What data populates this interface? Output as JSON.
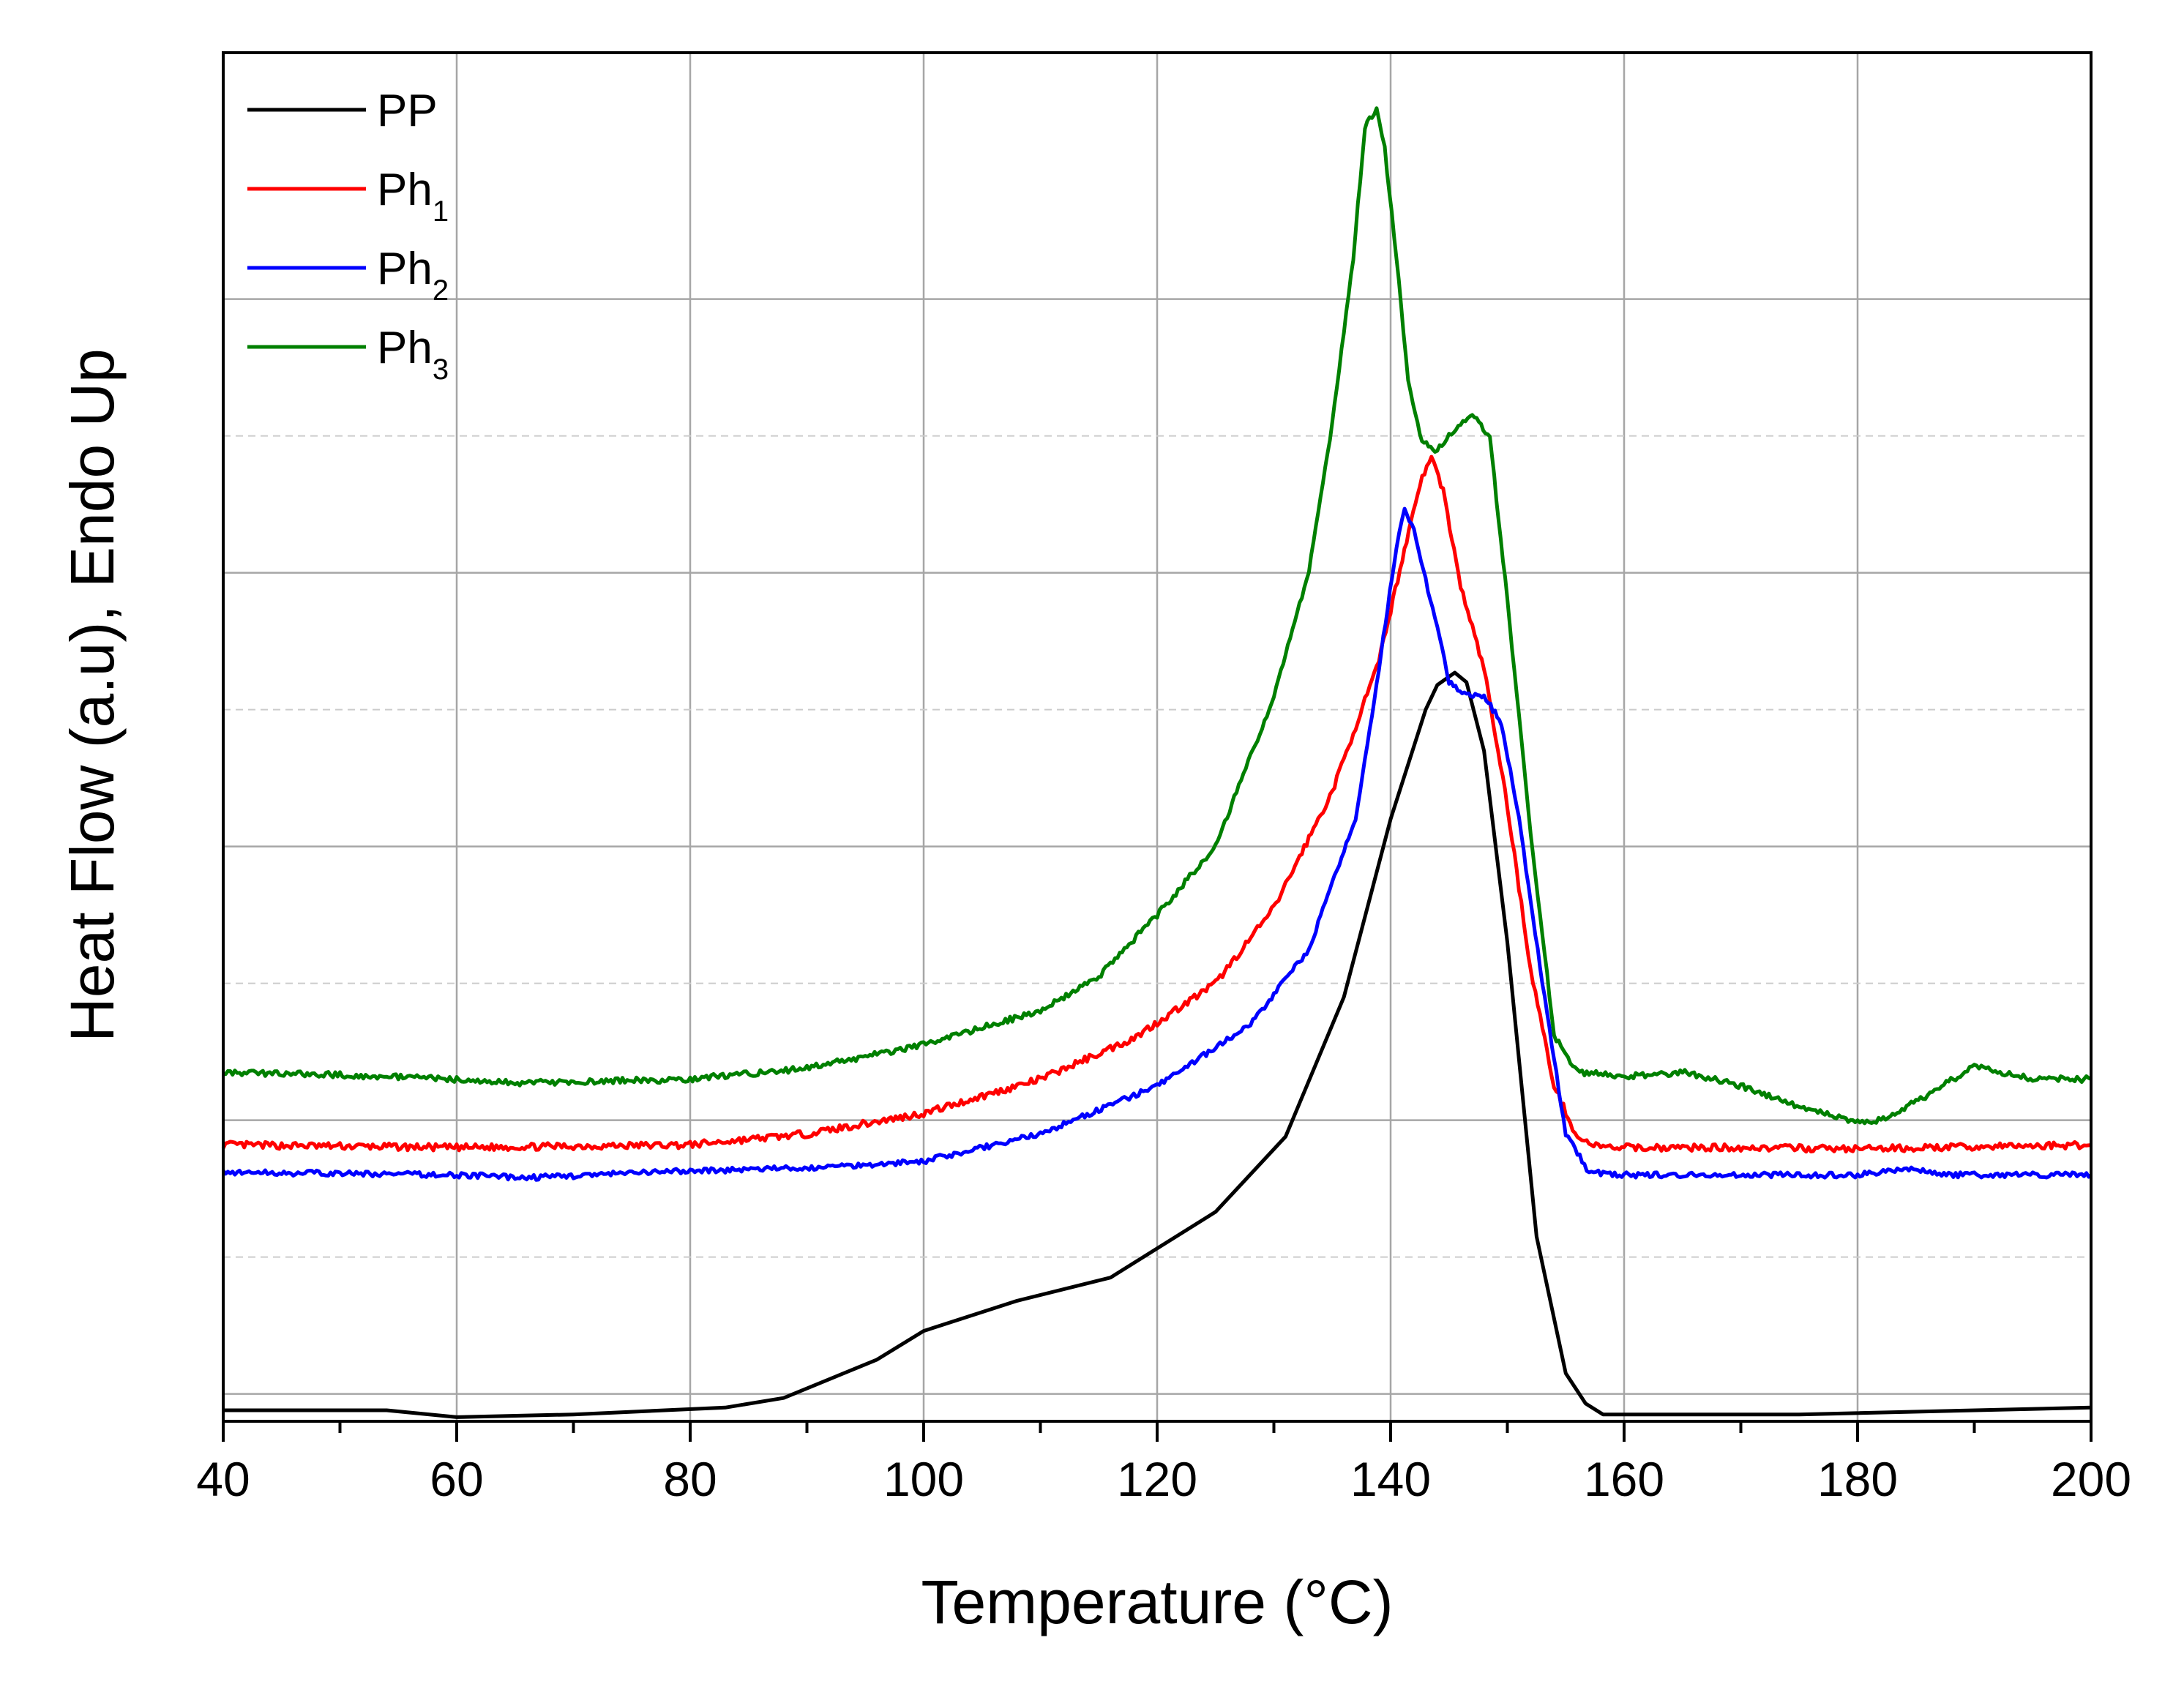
{
  "chart_data": {
    "type": "line",
    "title": "",
    "xlabel": "Temperature (°C)",
    "ylabel": "Heat Flow (a.u), Endo Up",
    "xlim": [
      40,
      200
    ],
    "ylim": [
      0,
      10
    ],
    "x_ticks": [
      40,
      60,
      80,
      100,
      120,
      140,
      160,
      180,
      200
    ],
    "x_tick_labels": [
      "40",
      "60",
      "80",
      "100",
      "120",
      "140",
      "160",
      "180",
      "200"
    ],
    "y_tick_labels_shown": false,
    "y_gridlines": [
      0.2,
      2.2,
      4.2,
      6.2,
      8.2
    ],
    "y_minor_gridlines": [
      1.2,
      3.2,
      5.2,
      7.2
    ],
    "grid": true,
    "legend_position": "top-left",
    "series": [
      {
        "name": "PP",
        "name_base": "PP",
        "name_sub": "",
        "color": "#000000",
        "noise": 0,
        "x": [
          40,
          54,
          60,
          70,
          83,
          88,
          96,
          100,
          108,
          116,
          125,
          131,
          136,
          140,
          143,
          144,
          145.5,
          146.5,
          148,
          150,
          152.5,
          155,
          156.7,
          158.2,
          175,
          200
        ],
        "y": [
          0.08,
          0.08,
          0.03,
          0.05,
          0.1,
          0.17,
          0.45,
          0.66,
          0.88,
          1.05,
          1.53,
          2.08,
          3.1,
          4.4,
          5.2,
          5.38,
          5.47,
          5.4,
          4.9,
          3.5,
          1.35,
          0.35,
          0.13,
          0.05,
          0.05,
          0.1
        ]
      },
      {
        "name": "Ph1",
        "name_base": "Ph",
        "name_sub": "1",
        "color": "#ff0000",
        "noise": 0.025,
        "x": [
          40,
          60,
          80,
          90,
          100,
          110,
          118,
          125,
          130,
          135,
          139,
          141,
          142.5,
          143.5,
          144.5,
          146,
          148,
          150,
          152,
          154,
          156,
          158,
          160,
          170,
          180,
          200
        ],
        "y": [
          2.02,
          2.0,
          2.02,
          2.1,
          2.25,
          2.5,
          2.8,
          3.2,
          3.75,
          4.6,
          5.55,
          6.3,
          6.85,
          7.05,
          6.8,
          6.1,
          5.5,
          4.5,
          3.3,
          2.45,
          2.07,
          2.0,
          2.0,
          2.0,
          1.99,
          2.02
        ]
      },
      {
        "name": "Ph2",
        "name_base": "Ph",
        "name_sub": "2",
        "color": "#0000ff",
        "noise": 0.02,
        "x": [
          40,
          60,
          66,
          80,
          90,
          100,
          110,
          120,
          128,
          133,
          137,
          139,
          140.5,
          141.2,
          142,
          144,
          145,
          146.5,
          148,
          149.5,
          151,
          153,
          155,
          157,
          160,
          170,
          180,
          184,
          188,
          200
        ],
        "y": [
          1.82,
          1.8,
          1.78,
          1.83,
          1.85,
          1.9,
          2.1,
          2.45,
          2.9,
          3.45,
          4.4,
          5.5,
          6.4,
          6.65,
          6.5,
          5.8,
          5.4,
          5.3,
          5.3,
          5.1,
          4.4,
          3.2,
          2.1,
          1.82,
          1.8,
          1.8,
          1.8,
          1.85,
          1.8,
          1.8
        ]
      },
      {
        "name": "Ph3",
        "name_base": "Ph",
        "name_sub": "3",
        "color": "#008000",
        "noise": 0.022,
        "x": [
          40,
          50,
          60,
          65,
          70,
          80,
          90,
          100,
          110,
          115,
          120,
          125,
          130,
          133,
          135,
          136.8,
          137.8,
          138.8,
          139.5,
          140.5,
          141.5,
          142.5,
          143.8,
          145,
          146,
          147,
          148.5,
          150,
          152,
          154,
          156,
          160,
          165,
          170,
          175,
          180,
          182,
          186,
          190,
          195,
          200
        ],
        "y": [
          2.55,
          2.53,
          2.5,
          2.47,
          2.48,
          2.5,
          2.58,
          2.75,
          3.0,
          3.25,
          3.7,
          4.2,
          5.3,
          6.2,
          7.3,
          8.5,
          9.45,
          9.6,
          9.3,
          8.5,
          7.6,
          7.2,
          7.08,
          7.2,
          7.3,
          7.35,
          7.2,
          6.0,
          4.3,
          2.82,
          2.55,
          2.52,
          2.55,
          2.45,
          2.3,
          2.18,
          2.2,
          2.38,
          2.6,
          2.5,
          2.5
        ]
      }
    ]
  }
}
